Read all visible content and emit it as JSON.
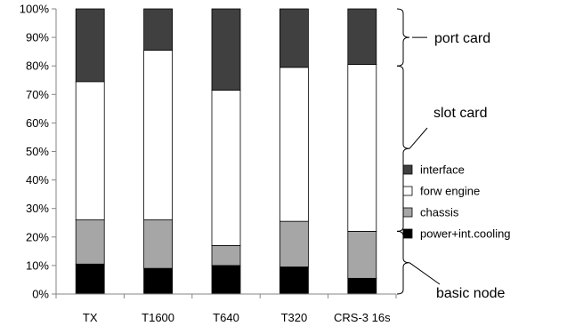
{
  "chart_data": {
    "type": "bar",
    "stacked": true,
    "title": "",
    "xlabel": "",
    "ylabel": "",
    "categories": [
      "TX",
      "T1600",
      "T640",
      "T320",
      "CRS-3 16s"
    ],
    "ylim": [
      0,
      100
    ],
    "yticks": [
      "0%",
      "10%",
      "20%",
      "30%",
      "40%",
      "50%",
      "60%",
      "70%",
      "80%",
      "90%",
      "100%"
    ],
    "grid": false,
    "legend_position": "right",
    "series": [
      {
        "name": "power+int.cooling",
        "color": "#000000",
        "values": [
          10.5,
          9,
          10,
          9.5,
          5.5
        ]
      },
      {
        "name": "chassis",
        "color": "#a6a6a6",
        "values": [
          15.5,
          17,
          7,
          16,
          16.5
        ]
      },
      {
        "name": "forw engine",
        "color": "#ffffff",
        "values": [
          48.5,
          59.5,
          54.5,
          54,
          58.5
        ]
      },
      {
        "name": "interface",
        "color": "#404040",
        "values": [
          25.5,
          14.5,
          28.5,
          20.5,
          19.5
        ]
      }
    ],
    "legend_order": [
      "interface",
      "forw engine",
      "chassis",
      "power+int.cooling"
    ],
    "annotations": [
      {
        "label": "port card",
        "from": 80,
        "to": 100
      },
      {
        "label": "slot card",
        "from": 22,
        "to": 80
      },
      {
        "label": "basic node",
        "from": 0,
        "to": 22
      }
    ]
  }
}
